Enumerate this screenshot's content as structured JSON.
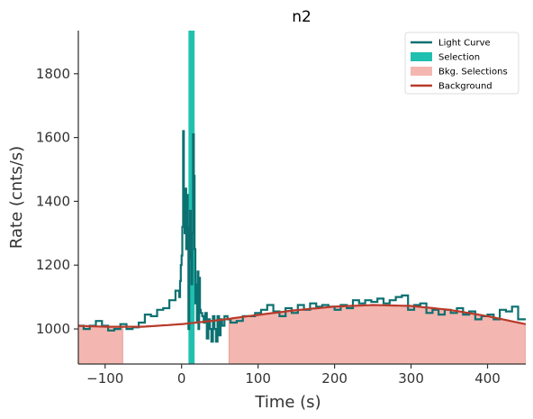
{
  "chart_data": {
    "type": "line",
    "title": "n2",
    "xlabel": "Time (s)",
    "ylabel": "Rate (cnts/s)",
    "xlim": [
      -135,
      450
    ],
    "ylim": [
      890,
      1935
    ],
    "x_ticks": [
      -100,
      0,
      100,
      200,
      300,
      400
    ],
    "x_tick_labels": [
      "−100",
      "0",
      "100",
      "200",
      "300",
      "400"
    ],
    "y_ticks": [
      1000,
      1200,
      1400,
      1600,
      1800
    ],
    "y_tick_labels": [
      "1000",
      "1200",
      "1400",
      "1600",
      "1800"
    ],
    "legend_position": "top-right",
    "legend": [
      {
        "label": "Light Curve",
        "kind": "line",
        "color": "#0d7070"
      },
      {
        "label": "Selection",
        "kind": "patch",
        "color": "#20c0b0"
      },
      {
        "label": "Bkg. Selections",
        "kind": "patch",
        "color": "#f4b6b0"
      },
      {
        "label": "Background",
        "kind": "line",
        "color": "#b83a2a"
      }
    ],
    "colors": {
      "light_curve": "#0d7070",
      "selection": "#20c0b0",
      "bkg_fill": "#f4b6b0",
      "bkg_edge": "#e8a09a",
      "background": "#b83a2a",
      "axis": "#333333"
    },
    "light_curve": {
      "x": [
        -135,
        -128,
        -120,
        -112,
        -104,
        -96,
        -88,
        -80,
        -72,
        -64,
        -56,
        -48,
        -40,
        -32,
        -24,
        -16,
        -8,
        -3,
        -2,
        -1,
        0,
        1,
        2,
        3,
        4,
        5,
        6,
        7,
        8,
        9,
        10,
        11,
        12,
        13,
        14,
        15,
        16,
        17,
        18,
        19,
        20,
        21,
        22,
        23,
        24,
        25,
        27,
        29,
        31,
        33,
        35,
        37,
        39,
        41,
        43,
        45,
        47,
        49,
        51,
        53,
        56,
        60,
        64,
        72,
        80,
        88,
        96,
        104,
        112,
        120,
        128,
        136,
        144,
        152,
        160,
        168,
        176,
        184,
        192,
        200,
        208,
        216,
        224,
        232,
        240,
        248,
        256,
        264,
        272,
        280,
        288,
        296,
        304,
        312,
        320,
        328,
        336,
        344,
        352,
        360,
        368,
        376,
        384,
        392,
        400,
        408,
        416,
        424,
        432,
        440
      ],
      "y": [
        1010,
        1000,
        1010,
        1025,
        1010,
        995,
        1000,
        1015,
        1000,
        1005,
        1020,
        1045,
        1040,
        1060,
        1065,
        1090,
        1120,
        1100,
        1150,
        1200,
        1230,
        1320,
        1620,
        1380,
        1300,
        1440,
        1250,
        1420,
        1320,
        1000,
        1220,
        1370,
        1300,
        1140,
        1300,
        1610,
        1480,
        1250,
        1080,
        1140,
        1020,
        1180,
        1000,
        1160,
        1060,
        1050,
        1040,
        1020,
        1050,
        970,
        1030,
        1000,
        960,
        1040,
        1000,
        960,
        1040,
        980,
        1030,
        1010,
        1040,
        1030,
        1020,
        1025,
        1040,
        1040,
        1050,
        1060,
        1075,
        1055,
        1040,
        1065,
        1050,
        1075,
        1060,
        1080,
        1070,
        1075,
        1070,
        1060,
        1075,
        1065,
        1090,
        1080,
        1090,
        1085,
        1095,
        1080,
        1090,
        1100,
        1105,
        1060,
        1075,
        1080,
        1050,
        1060,
        1045,
        1060,
        1050,
        1065,
        1045,
        1055,
        1030,
        1040,
        1045,
        1030,
        1060,
        1055,
        1070,
        1030
      ]
    },
    "selection_interval": [
      9,
      17
    ],
    "bkg_selections": [
      [
        -135,
        -77
      ],
      [
        62,
        450
      ]
    ],
    "background": {
      "x": [
        -135,
        -100,
        -50,
        0,
        50,
        100,
        150,
        200,
        250,
        300,
        350,
        400,
        450
      ],
      "y": [
        1010,
        1007,
        1007,
        1015,
        1028,
        1044,
        1059,
        1070,
        1075,
        1072,
        1060,
        1040,
        1015
      ]
    }
  }
}
